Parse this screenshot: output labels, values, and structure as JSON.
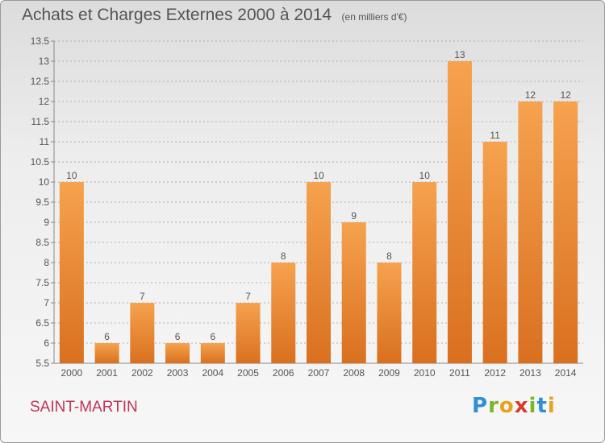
{
  "header": {
    "title": "Achats et Charges Externes 2000 à 2014",
    "unit": "(en milliers d'€)"
  },
  "footer": {
    "place": "SAINT-MARTIN",
    "logo": [
      "P",
      "r",
      "o",
      "x",
      "i",
      "t",
      "i"
    ],
    "logo_colors": [
      "#2f8fd6",
      "#7bb52a",
      "#e8a21a",
      "#d63b2f",
      "#7bb52a",
      "#2f8fd6",
      "#e8a21a"
    ]
  },
  "colors": {
    "bar_top": "#f6a24e",
    "bar_bottom": "#d9701f",
    "grid": "#b0b0b0",
    "text": "#555555"
  },
  "chart_data": {
    "type": "bar",
    "title": "Achats et Charges Externes 2000 à 2014",
    "subtitle": "(en milliers d'€)",
    "categories": [
      "2000",
      "2001",
      "2002",
      "2003",
      "2004",
      "2005",
      "2006",
      "2007",
      "2008",
      "2009",
      "2010",
      "2011",
      "2012",
      "2013",
      "2014"
    ],
    "values": [
      10,
      6,
      7,
      6,
      6,
      7,
      8,
      10,
      9,
      8,
      10,
      13,
      11,
      12,
      12
    ],
    "data_labels": [
      "10",
      "6",
      "7",
      "6",
      "6",
      "7",
      "8",
      "10",
      "9",
      "8",
      "10",
      "13",
      "11",
      "12",
      "12"
    ],
    "ylim": [
      5.5,
      13.5
    ],
    "yticks": [
      "5.5",
      "6",
      "6.5",
      "7",
      "7.5",
      "8",
      "8.5",
      "9",
      "9.5",
      "10",
      "10.5",
      "11",
      "11.5",
      "12",
      "12.5",
      "13",
      "13.5"
    ],
    "grid": true,
    "xlabel": "",
    "ylabel": ""
  }
}
